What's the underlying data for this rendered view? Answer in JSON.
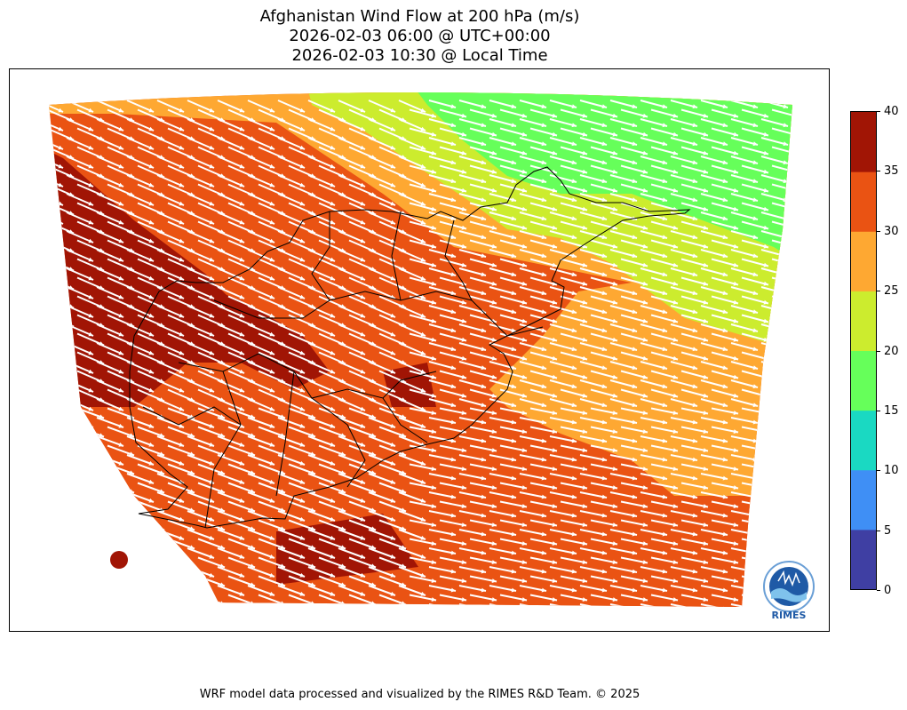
{
  "title": {
    "line1": "Afghanistan Wind Flow at 200 hPa (m/s)",
    "line2": "2026-02-03 06:00 @ UTC+00:00",
    "line3": "2026-02-03 10:30 @ Local Time"
  },
  "colorbar": {
    "ticks": [
      "0",
      "5",
      "10",
      "15",
      "20",
      "25",
      "30",
      "35",
      "40"
    ],
    "colors": [
      "#3f3fa3",
      "#3f8ff5",
      "#1ad9c2",
      "#66ff5a",
      "#ccec2e",
      "#fea832",
      "#ea5313",
      "#a11505"
    ]
  },
  "map": {
    "wind_level_hPa": 200,
    "speed_units": "m/s",
    "wind_direction": "westerly / west-northwest",
    "arrow_color": "#ffffff",
    "border_color": "#000000"
  },
  "logo": {
    "text": "RIMES"
  },
  "footer": "WRF model data processed and visualized by the RIMES R&D Team. © 2025"
}
